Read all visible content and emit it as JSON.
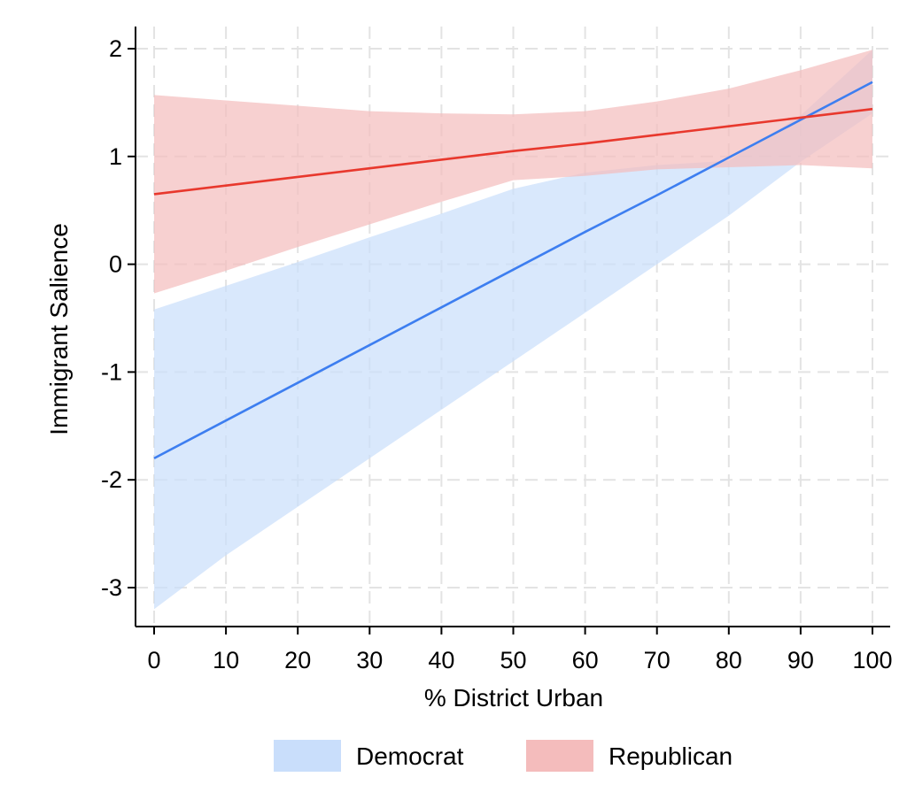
{
  "chart_data": {
    "type": "line",
    "title": "",
    "xlabel": "% District Urban",
    "ylabel": "Immigrant Salience",
    "xlim": [
      0,
      100
    ],
    "ylim": [
      -3.3,
      2.1
    ],
    "x_ticks": [
      0,
      10,
      20,
      30,
      40,
      50,
      60,
      70,
      80,
      90,
      100
    ],
    "y_ticks": [
      -3,
      -2,
      -1,
      0,
      1,
      2
    ],
    "grid": true,
    "legend_position": "bottom",
    "series": [
      {
        "name": "Democrat",
        "color": "#3d7ef0",
        "band_color": "#c9defb",
        "x": [
          0,
          10,
          20,
          30,
          40,
          50,
          60,
          70,
          80,
          90,
          100
        ],
        "y": [
          -1.8,
          -1.45,
          -1.1,
          -0.75,
          -0.4,
          -0.05,
          0.3,
          0.64,
          0.99,
          1.34,
          1.69
        ],
        "lower": [
          -3.2,
          -2.7,
          -2.25,
          -1.8,
          -1.35,
          -0.9,
          -0.45,
          0.0,
          0.45,
          0.95,
          1.4
        ],
        "upper": [
          -0.42,
          -0.2,
          0.02,
          0.25,
          0.47,
          0.7,
          0.85,
          0.92,
          0.96,
          1.38,
          1.99
        ]
      },
      {
        "name": "Republican",
        "color": "#e8382d",
        "band_color": "#f4bcbc",
        "x": [
          0,
          10,
          20,
          30,
          40,
          50,
          60,
          70,
          80,
          90,
          100
        ],
        "y": [
          0.65,
          0.73,
          0.81,
          0.89,
          0.97,
          1.05,
          1.12,
          1.2,
          1.28,
          1.36,
          1.44
        ],
        "lower": [
          -0.27,
          -0.06,
          0.16,
          0.37,
          0.58,
          0.78,
          0.82,
          0.88,
          0.9,
          0.92,
          0.89
        ],
        "upper": [
          1.57,
          1.52,
          1.47,
          1.42,
          1.4,
          1.39,
          1.42,
          1.51,
          1.63,
          1.8,
          1.99
        ]
      }
    ]
  }
}
